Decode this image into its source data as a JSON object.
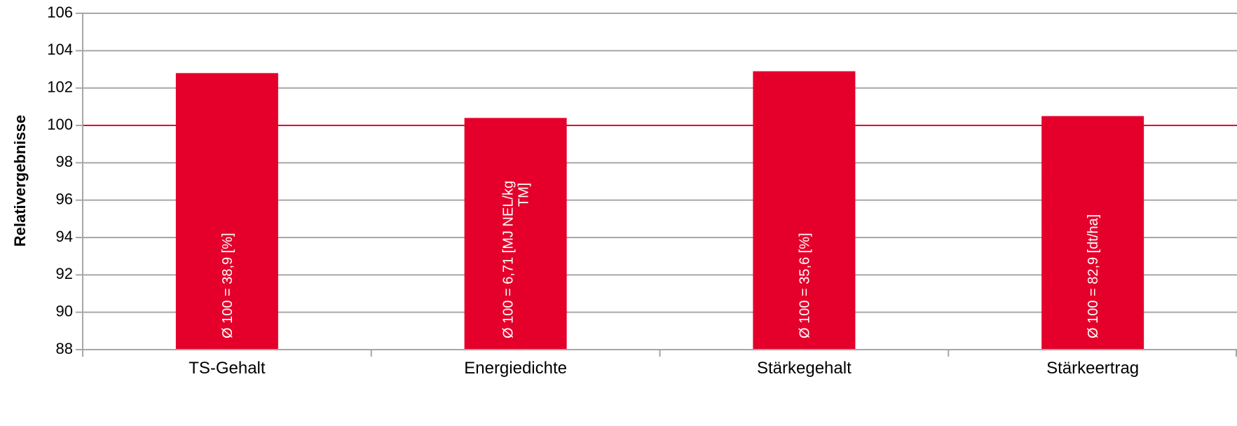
{
  "chart_data": {
    "type": "bar",
    "title": "",
    "xlabel": "",
    "ylabel": "Relativergebnisse",
    "ylim": [
      88,
      106
    ],
    "ytick_step": 2,
    "grid": true,
    "legend": "none",
    "reference_line": 100,
    "categories": [
      "TS-Gehalt",
      "Energiedichte",
      "Stärkegehalt",
      "Stärkeertrag"
    ],
    "series": [
      {
        "values": [
          102.8,
          100.4,
          102.9,
          100.5
        ]
      }
    ],
    "bar_labels": [
      [
        "Ø 100 = 38,9 [%]"
      ],
      [
        "Ø 100 = 6,71 [MJ NEL/kg",
        "TM]"
      ],
      [
        "Ø 100 = 35,6 [%]"
      ],
      [
        "Ø 100 = 82,9 [dt/ha]"
      ]
    ],
    "colors": {
      "bar": "#E4002B",
      "reference_line": "#E4002B",
      "grid": "#A6A6A6",
      "axis": "#A6A6A6"
    }
  }
}
